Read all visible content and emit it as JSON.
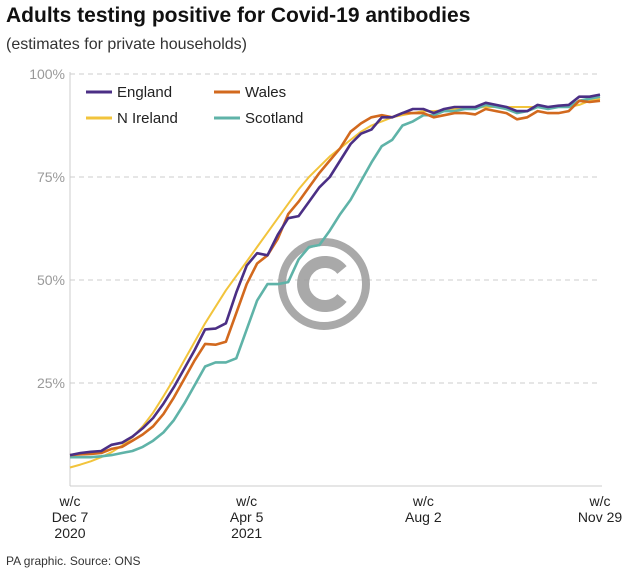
{
  "title": "Adults testing positive for Covid-19 antibodies",
  "subtitle": "(estimates for private households)",
  "footer": "PA graphic. Source: ONS",
  "colors": {
    "England": "#4b2f85",
    "Wales": "#d2691e",
    "N Ireland": "#f2c43c",
    "Scotland": "#5fb3a8",
    "grid": "#cccccc",
    "watermark": "#a0a0a0"
  },
  "chart_data": {
    "type": "line",
    "title": "Adults testing positive for Covid-19 antibodies",
    "ylabel": "",
    "xlabel": "",
    "ylim": [
      0,
      100
    ],
    "yticks": [
      {
        "v": 100,
        "label": "100%"
      },
      {
        "v": 75,
        "label": "75%"
      },
      {
        "v": 50,
        "label": "50%"
      },
      {
        "v": 25,
        "label": "25%"
      }
    ],
    "xticks": [
      {
        "week": 0,
        "lines": [
          "w/c",
          "Dec 7",
          "2020"
        ]
      },
      {
        "week": 17,
        "lines": [
          "w/c",
          "Apr 5",
          "2021"
        ]
      },
      {
        "week": 34,
        "lines": [
          "w/c",
          "Aug 2"
        ]
      },
      {
        "week": 51,
        "lines": [
          "w/c",
          "Nov 29"
        ]
      }
    ],
    "x_unit": "weeks since w/c Dec 7 2020",
    "legend": "top-left",
    "series": [
      {
        "name": "England",
        "values": [
          7.5,
          8,
          8.3,
          8.5,
          10,
          10.5,
          12,
          14,
          16.5,
          20,
          24,
          28.5,
          33,
          38,
          38.2,
          39.5,
          47,
          53.5,
          56.5,
          56,
          61,
          65,
          65.5,
          69,
          72.5,
          75,
          79,
          83,
          85.5,
          86.5,
          89.5,
          89.5,
          90.5,
          91.5,
          91.5,
          90.5,
          91.5,
          92,
          92,
          92,
          93,
          92.5,
          92,
          91,
          91,
          92.5,
          92,
          92.3,
          92.5,
          94.5,
          94.5,
          95
        ]
      },
      {
        "name": "Wales",
        "values": [
          7.5,
          7.7,
          7.8,
          8,
          9,
          9.5,
          11,
          12.5,
          14.5,
          17.5,
          21.5,
          26,
          30.5,
          34.5,
          34.3,
          35,
          42,
          49,
          54,
          56,
          60,
          66,
          69,
          72.5,
          76,
          79,
          82,
          86,
          88,
          89.5,
          90,
          89.5,
          90.5,
          90.5,
          90.5,
          89.5,
          90,
          90.5,
          90.5,
          90.2,
          91.5,
          91,
          90.5,
          89,
          89.5,
          91,
          90.5,
          90.5,
          91,
          93.5,
          93.2,
          93.5
        ]
      },
      {
        "name": "N Ireland",
        "values": [
          4.5,
          5.2,
          6,
          7,
          8.2,
          9.8,
          11.8,
          14.5,
          17.8,
          21.8,
          26,
          30.5,
          35,
          39.5,
          43.5,
          47.5,
          51,
          54.5,
          58,
          61.5,
          65,
          68.5,
          72,
          75,
          77.5,
          80,
          82,
          84,
          86,
          87.5,
          88.5,
          89.5,
          90,
          90.5,
          91,
          91,
          91.2,
          91.5,
          91.5,
          91.8,
          92,
          92,
          92,
          92,
          92,
          92,
          92,
          92,
          92,
          92.5,
          93.5,
          94
        ]
      },
      {
        "name": "Scotland",
        "values": [
          7,
          7,
          7,
          7.2,
          7.5,
          8,
          8.5,
          9.5,
          11,
          13,
          16,
          20,
          24.5,
          29,
          30,
          30,
          31,
          38,
          45,
          49,
          49,
          49.5,
          55,
          58,
          58.5,
          62,
          66,
          69.5,
          74,
          78.5,
          82.5,
          84,
          87.5,
          88.5,
          90,
          90,
          91,
          91,
          91.5,
          91.5,
          92.5,
          92,
          91.5,
          90.5,
          91,
          92,
          91.5,
          92,
          92,
          93.5,
          94,
          94.5
        ]
      }
    ]
  }
}
